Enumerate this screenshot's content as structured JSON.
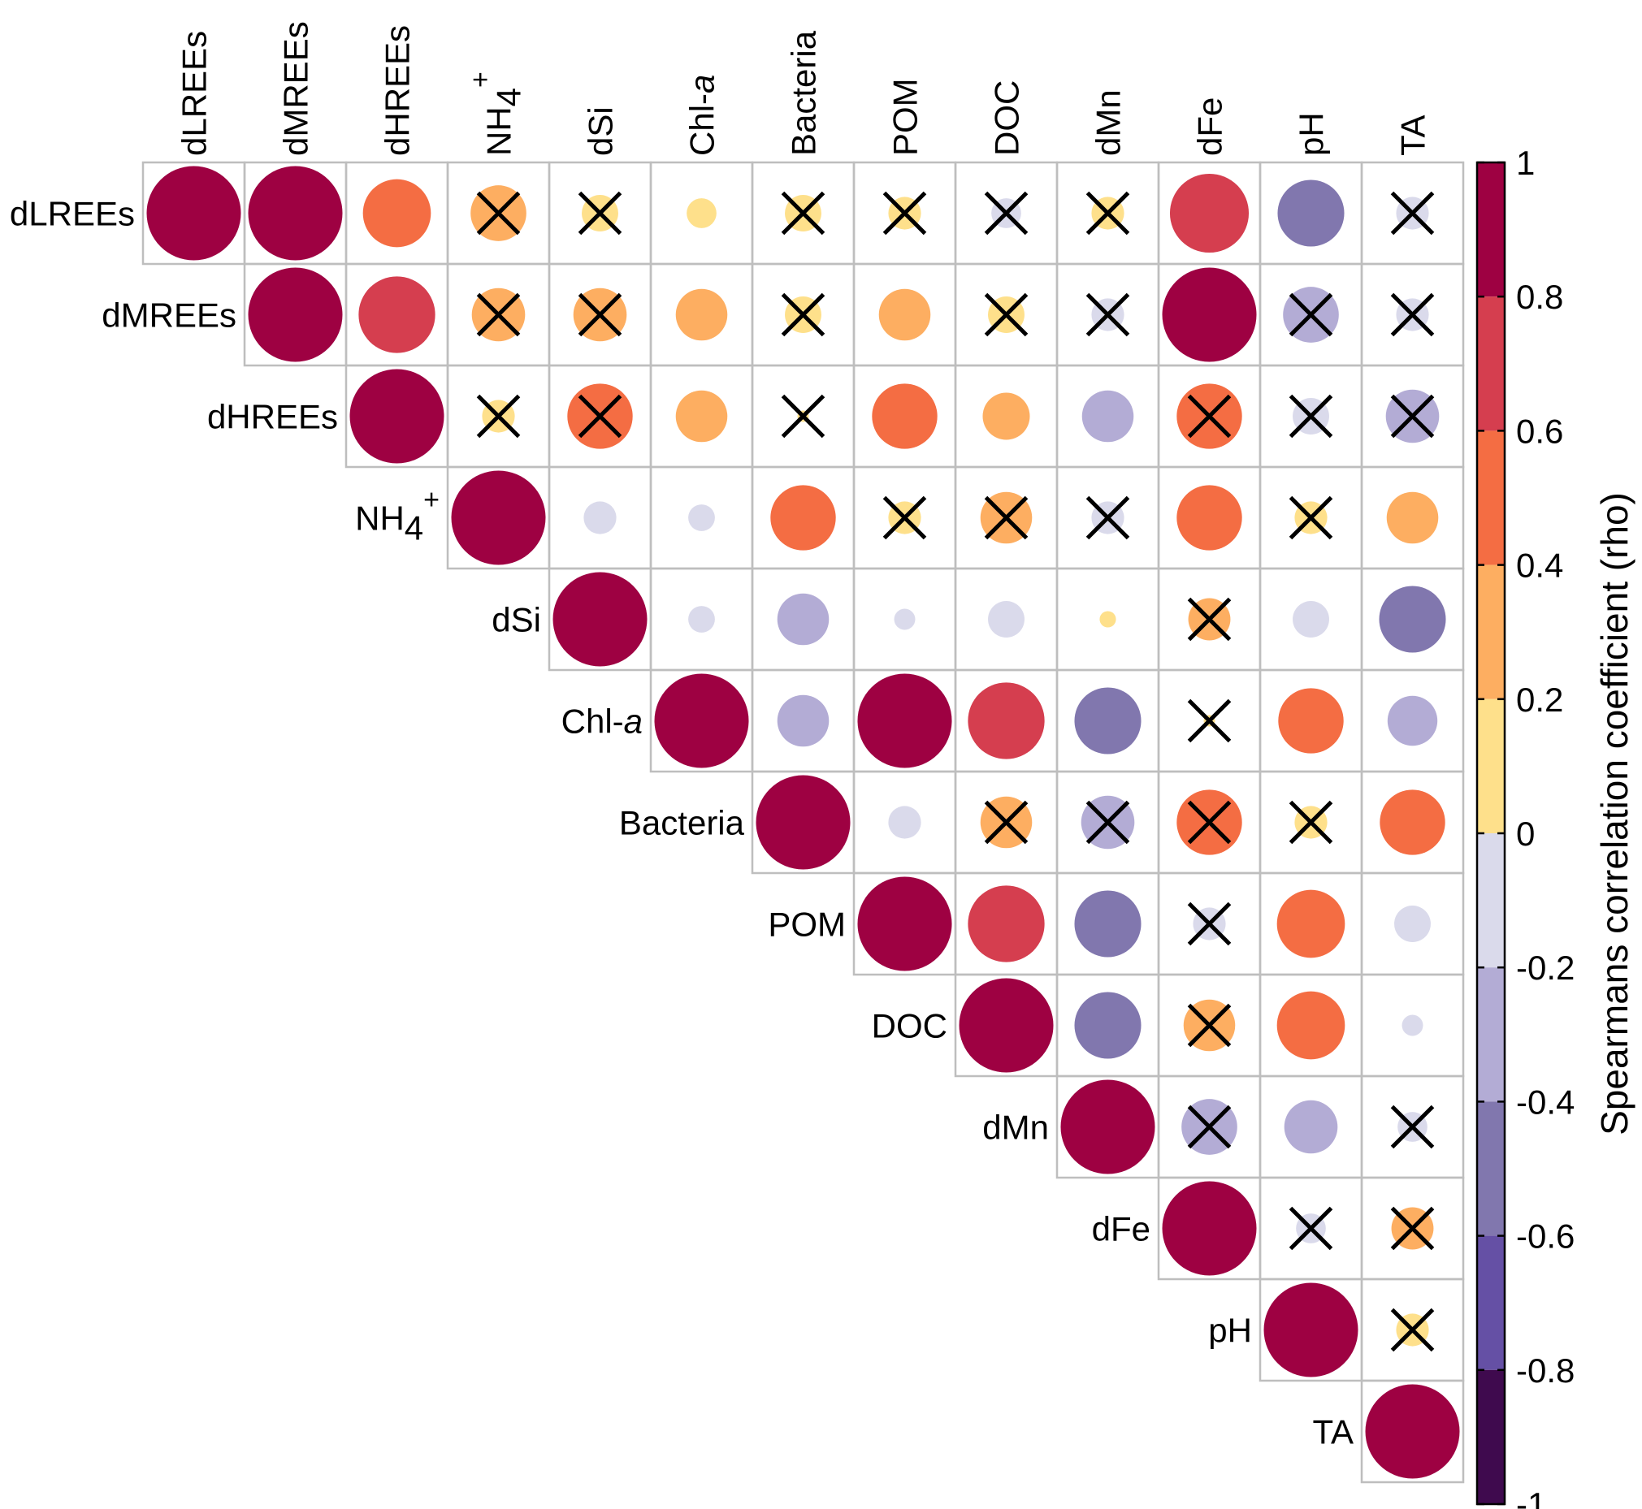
{
  "chart_data": {
    "type": "correlation-matrix",
    "variables": [
      "dLREEs",
      "dMREEs",
      "dHREEs",
      "NH4+",
      "dSi",
      "Chl-a",
      "Bacteria",
      "POM",
      "DOC",
      "dMn",
      "dFe",
      "pH",
      "TA"
    ],
    "labels": [
      {
        "base": "dLREEs",
        "sub": "",
        "sup": "",
        "suffix": "",
        "italic": ""
      },
      {
        "base": "dMREEs",
        "sub": "",
        "sup": "",
        "suffix": "",
        "italic": ""
      },
      {
        "base": "dHREEs",
        "sub": "",
        "sup": "",
        "suffix": "",
        "italic": ""
      },
      {
        "base": "NH",
        "sub": "4",
        "sup": "+",
        "suffix": "",
        "italic": ""
      },
      {
        "base": "dSi",
        "sub": "",
        "sup": "",
        "suffix": "",
        "italic": ""
      },
      {
        "base": "Chl-",
        "sub": "",
        "sup": "",
        "suffix": "",
        "italic": "a"
      },
      {
        "base": "Bacteria",
        "sub": "",
        "sup": "",
        "suffix": "",
        "italic": ""
      },
      {
        "base": "POM",
        "sub": "",
        "sup": "",
        "suffix": "",
        "italic": ""
      },
      {
        "base": "DOC",
        "sub": "",
        "sup": "",
        "suffix": "",
        "italic": ""
      },
      {
        "base": "dMn",
        "sub": "",
        "sup": "",
        "suffix": "",
        "italic": ""
      },
      {
        "base": "dFe",
        "sub": "",
        "sup": "",
        "suffix": "",
        "italic": ""
      },
      {
        "base": "pH",
        "sub": "",
        "sup": "",
        "suffix": "",
        "italic": ""
      },
      {
        "base": "TA",
        "sub": "",
        "sup": "",
        "suffix": "",
        "italic": ""
      }
    ],
    "rho": [
      [
        1,
        1,
        0.52,
        0.35,
        0.15,
        0.1,
        0.15,
        0.12,
        -0.1,
        0.12,
        0.7,
        -0.5,
        -0.12
      ],
      [
        null,
        1,
        0.66,
        0.32,
        0.32,
        0.3,
        0.15,
        0.3,
        0.15,
        -0.12,
        1,
        -0.35,
        -0.12
      ],
      [
        null,
        null,
        1,
        0.12,
        0.48,
        0.3,
        0,
        0.48,
        0.25,
        -0.3,
        0.48,
        -0.15,
        -0.32
      ],
      [
        null,
        null,
        null,
        1,
        -0.12,
        -0.08,
        0.48,
        0.12,
        0.3,
        -0.12,
        0.48,
        0.12,
        0.3
      ],
      [
        null,
        null,
        null,
        null,
        1,
        -0.08,
        -0.3,
        -0.05,
        -0.15,
        0.03,
        0.2,
        -0.15,
        -0.5
      ],
      [
        null,
        null,
        null,
        null,
        null,
        1,
        -0.3,
        1,
        0.66,
        -0.5,
        0,
        0.48,
        -0.28
      ],
      [
        null,
        null,
        null,
        null,
        null,
        null,
        1,
        -0.12,
        0.3,
        -0.32,
        0.48,
        0.12,
        0.48
      ],
      [
        null,
        null,
        null,
        null,
        null,
        null,
        null,
        1,
        0.66,
        -0.5,
        -0.12,
        0.52,
        -0.15
      ],
      [
        null,
        null,
        null,
        null,
        null,
        null,
        null,
        null,
        1,
        -0.5,
        0.3,
        0.52,
        -0.05
      ],
      [
        null,
        null,
        null,
        null,
        null,
        null,
        null,
        null,
        null,
        1,
        -0.35,
        -0.32,
        -0.1
      ],
      [
        null,
        null,
        null,
        null,
        null,
        null,
        null,
        null,
        null,
        null,
        1,
        -0.1,
        0.2
      ],
      [
        null,
        null,
        null,
        null,
        null,
        null,
        null,
        null,
        null,
        null,
        null,
        1,
        0.12
      ],
      [
        null,
        null,
        null,
        null,
        null,
        null,
        null,
        null,
        null,
        null,
        null,
        null,
        1
      ]
    ],
    "crossed": [
      [
        false,
        false,
        false,
        true,
        true,
        false,
        true,
        true,
        true,
        true,
        false,
        false,
        true
      ],
      [
        false,
        false,
        false,
        true,
        true,
        false,
        true,
        false,
        true,
        true,
        false,
        true,
        true
      ],
      [
        false,
        false,
        false,
        true,
        true,
        false,
        true,
        false,
        false,
        false,
        true,
        true,
        true
      ],
      [
        false,
        false,
        false,
        false,
        false,
        false,
        false,
        true,
        true,
        true,
        false,
        true,
        false
      ],
      [
        false,
        false,
        false,
        false,
        false,
        false,
        false,
        false,
        false,
        false,
        true,
        false,
        false
      ],
      [
        false,
        false,
        false,
        false,
        false,
        false,
        false,
        false,
        false,
        false,
        true,
        false,
        false
      ],
      [
        false,
        false,
        false,
        false,
        false,
        false,
        false,
        false,
        true,
        true,
        true,
        true,
        false
      ],
      [
        false,
        false,
        false,
        false,
        false,
        false,
        false,
        false,
        false,
        false,
        true,
        false,
        false
      ],
      [
        false,
        false,
        false,
        false,
        false,
        false,
        false,
        false,
        false,
        false,
        true,
        false,
        false
      ],
      [
        false,
        false,
        false,
        false,
        false,
        false,
        false,
        false,
        false,
        false,
        true,
        false,
        true
      ],
      [
        false,
        false,
        false,
        false,
        false,
        false,
        false,
        false,
        false,
        false,
        false,
        true,
        true
      ],
      [
        false,
        false,
        false,
        false,
        false,
        false,
        false,
        false,
        false,
        false,
        false,
        false,
        true
      ],
      [
        false,
        false,
        false,
        false,
        false,
        false,
        false,
        false,
        false,
        false,
        false,
        false,
        false
      ]
    ],
    "colorbar": {
      "title": "Spearmans correlation coefficient (rho)",
      "range": [
        -1,
        1
      ],
      "tick_values": [
        1,
        0.8,
        0.6,
        0.4,
        0.2,
        0,
        -0.2,
        -0.4,
        -0.6,
        -0.8,
        -1
      ],
      "tick_labels": [
        "1",
        "0.8",
        "0.6",
        "0.4",
        "0.2",
        "0",
        "-0.2",
        "-0.4",
        "-0.6",
        "-0.8",
        "-1"
      ],
      "bins": [
        {
          "from": 0.8,
          "to": 1,
          "color": "#9E0142"
        },
        {
          "from": 0.6,
          "to": 0.8,
          "color": "#D53E4F"
        },
        {
          "from": 0.4,
          "to": 0.6,
          "color": "#F46D43"
        },
        {
          "from": 0.2,
          "to": 0.4,
          "color": "#FDAE61"
        },
        {
          "from": 0,
          "to": 0.2,
          "color": "#FEE08B"
        },
        {
          "from": -0.2,
          "to": 0,
          "color": "#DADAEB"
        },
        {
          "from": -0.4,
          "to": -0.2,
          "color": "#B3ACD5"
        },
        {
          "from": -0.6,
          "to": -0.4,
          "color": "#8177AE"
        },
        {
          "from": -0.8,
          "to": -0.6,
          "color": "#6550A5"
        },
        {
          "from": -1,
          "to": -0.8,
          "color": "#3F0A4E"
        }
      ]
    },
    "grid_color": "#BEBEBE",
    "cross_color": "#000000"
  }
}
